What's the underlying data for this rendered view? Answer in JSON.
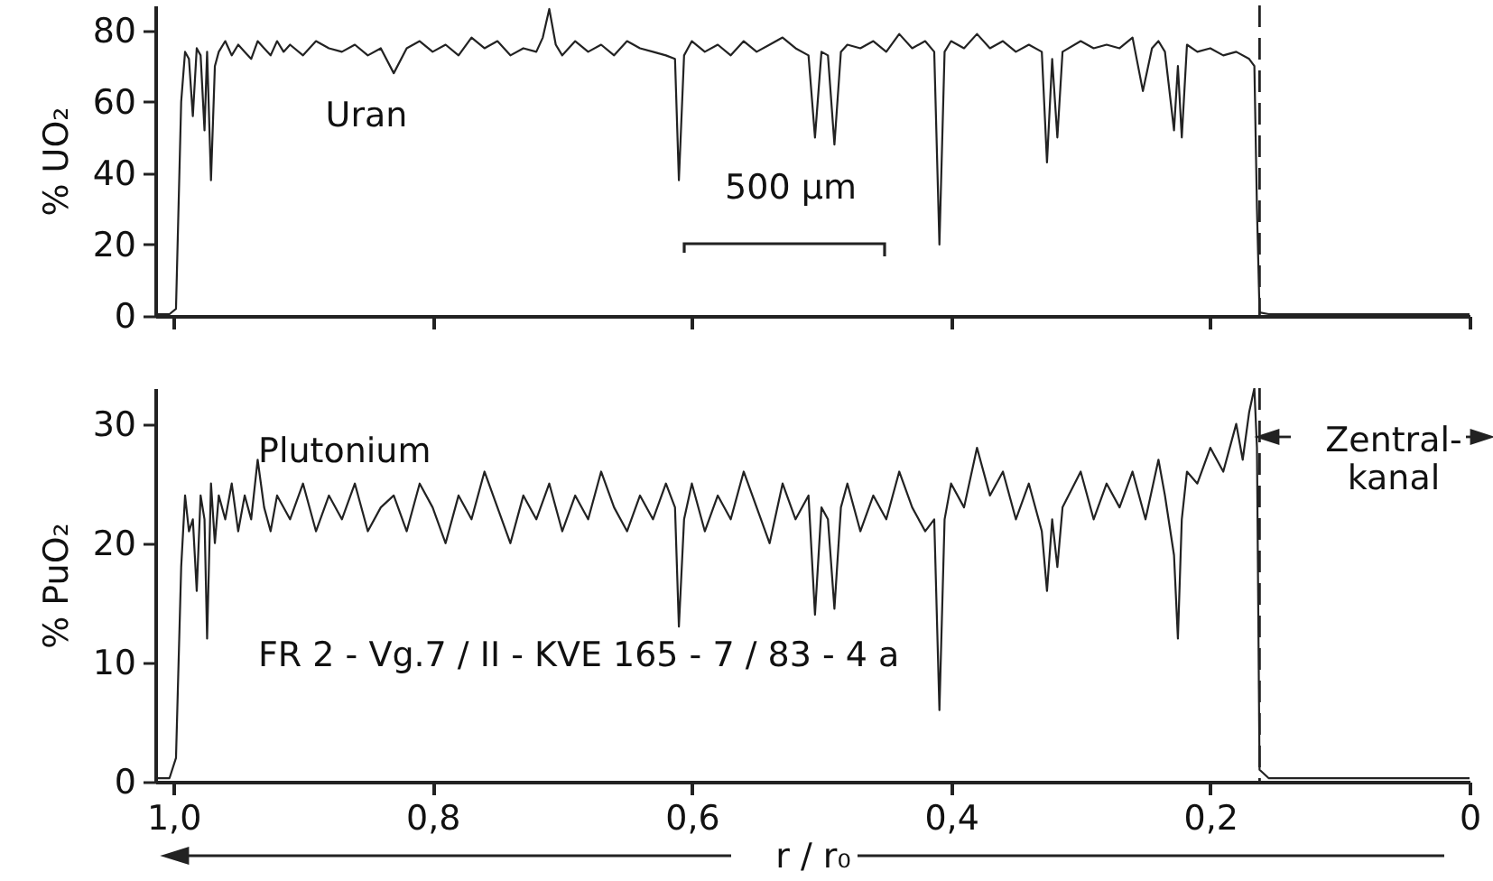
{
  "chart_data": [
    {
      "type": "line",
      "ylabel": "% UO₂",
      "xlim": [
        1.014,
        0
      ],
      "ylim": [
        0,
        87
      ],
      "xticks": [
        {
          "value": 1,
          "label": null
        },
        {
          "value": 0.8,
          "label": null
        },
        {
          "value": 0.6,
          "label": null
        },
        {
          "value": 0.4,
          "label": null
        },
        {
          "value": 0.2,
          "label": null
        },
        {
          "value": 0,
          "label": null
        }
      ],
      "yticks": [
        0,
        20,
        40,
        60,
        80
      ],
      "tick_labels": "y",
      "grid": false,
      "line_style": "solid",
      "marker": "none",
      "annotations": [
        "Uran",
        "500 µm"
      ],
      "ref_lines": [
        {
          "axis": "x",
          "value": 0.162,
          "line_style": "dashed",
          "color": "#222222"
        }
      ],
      "series": [
        {
          "color": "#222222",
          "x": [
            1.014,
            1.003,
            0.998,
            0.994,
            0.991,
            0.988,
            0.985,
            0.982,
            0.979,
            0.976,
            0.974,
            0.971,
            0.968,
            0.965,
            0.96,
            0.955,
            0.95,
            0.945,
            0.94,
            0.935,
            0.93,
            0.925,
            0.92,
            0.915,
            0.91,
            0.9,
            0.89,
            0.88,
            0.87,
            0.86,
            0.85,
            0.84,
            0.83,
            0.82,
            0.81,
            0.8,
            0.79,
            0.78,
            0.77,
            0.76,
            0.75,
            0.74,
            0.73,
            0.72,
            0.715,
            0.71,
            0.705,
            0.7,
            0.69,
            0.68,
            0.67,
            0.66,
            0.65,
            0.64,
            0.63,
            0.62,
            0.613,
            0.61,
            0.606,
            0.6,
            0.59,
            0.58,
            0.57,
            0.56,
            0.55,
            0.54,
            0.53,
            0.52,
            0.51,
            0.505,
            0.5,
            0.495,
            0.49,
            0.485,
            0.48,
            0.47,
            0.46,
            0.45,
            0.44,
            0.43,
            0.42,
            0.413,
            0.409,
            0.405,
            0.4,
            0.39,
            0.38,
            0.37,
            0.36,
            0.35,
            0.34,
            0.33,
            0.326,
            0.322,
            0.318,
            0.314,
            0.3,
            0.29,
            0.28,
            0.27,
            0.26,
            0.252,
            0.245,
            0.24,
            0.235,
            0.228,
            0.225,
            0.222,
            0.218,
            0.21,
            0.2,
            0.19,
            0.18,
            0.17,
            0.166,
            0.164,
            0.162,
            0.155,
            0
          ],
          "values": [
            0.5,
            0.5,
            2,
            60,
            74,
            72,
            56,
            75,
            73,
            52,
            74,
            38,
            70,
            74,
            77,
            73,
            76,
            74,
            72,
            77,
            75,
            73,
            77,
            74,
            76,
            73,
            77,
            75,
            74,
            76,
            73,
            75,
            68,
            75,
            77,
            74,
            76,
            73,
            78,
            75,
            77,
            73,
            75,
            74,
            78,
            86,
            76,
            73,
            77,
            74,
            76,
            73,
            77,
            75,
            74,
            73,
            72,
            38,
            73,
            77,
            74,
            76,
            73,
            77,
            74,
            76,
            78,
            75,
            73,
            50,
            74,
            73,
            48,
            74,
            76,
            75,
            77,
            74,
            79,
            75,
            77,
            74,
            20,
            74,
            77,
            75,
            79,
            75,
            77,
            74,
            76,
            74,
            43,
            72,
            50,
            74,
            77,
            75,
            76,
            75,
            78,
            63,
            75,
            77,
            74,
            52,
            70,
            50,
            76,
            74,
            75,
            73,
            74,
            72,
            70,
            30,
            1,
            0.5,
            0.5
          ]
        }
      ]
    },
    {
      "type": "line",
      "ylabel": "% PuO₂",
      "xlabel": "r / r₀",
      "xlim": [
        1.014,
        0
      ],
      "ylim": [
        0,
        33
      ],
      "xticks": [
        {
          "value": 1,
          "label": "1,0"
        },
        {
          "value": 0.8,
          "label": "0,8"
        },
        {
          "value": 0.6,
          "label": "0,6"
        },
        {
          "value": 0.4,
          "label": "0,4"
        },
        {
          "value": 0.2,
          "label": "0,2"
        },
        0
      ],
      "yticks": [
        0,
        10,
        20,
        30
      ],
      "grid": false,
      "line_style": "solid",
      "marker": "none",
      "annotations": [
        "Plutonium",
        "FR 2 - Vg.7 / II - KVE 165 - 7 / 83 - 4 a",
        "Zentral-\nkanal"
      ],
      "ref_lines": [
        {
          "axis": "x",
          "value": 0.162,
          "line_style": "dashed",
          "color": "#222222"
        }
      ],
      "series": [
        {
          "color": "#222222",
          "x": [
            1.014,
            1.003,
            0.998,
            0.994,
            0.991,
            0.988,
            0.985,
            0.982,
            0.979,
            0.976,
            0.974,
            0.971,
            0.968,
            0.965,
            0.96,
            0.955,
            0.95,
            0.945,
            0.94,
            0.935,
            0.93,
            0.925,
            0.92,
            0.91,
            0.9,
            0.89,
            0.88,
            0.87,
            0.86,
            0.85,
            0.84,
            0.83,
            0.82,
            0.81,
            0.8,
            0.79,
            0.78,
            0.77,
            0.76,
            0.75,
            0.74,
            0.73,
            0.72,
            0.71,
            0.7,
            0.69,
            0.68,
            0.67,
            0.66,
            0.65,
            0.64,
            0.63,
            0.62,
            0.613,
            0.61,
            0.606,
            0.6,
            0.59,
            0.58,
            0.57,
            0.56,
            0.55,
            0.54,
            0.53,
            0.52,
            0.51,
            0.505,
            0.5,
            0.495,
            0.49,
            0.485,
            0.48,
            0.47,
            0.46,
            0.45,
            0.44,
            0.43,
            0.42,
            0.413,
            0.409,
            0.405,
            0.4,
            0.39,
            0.38,
            0.37,
            0.36,
            0.35,
            0.34,
            0.33,
            0.326,
            0.322,
            0.318,
            0.314,
            0.3,
            0.29,
            0.28,
            0.27,
            0.26,
            0.25,
            0.24,
            0.235,
            0.228,
            0.225,
            0.222,
            0.218,
            0.21,
            0.2,
            0.19,
            0.18,
            0.175,
            0.17,
            0.166,
            0.164,
            0.162,
            0.155,
            0
          ],
          "values": [
            0.3,
            0.3,
            2,
            18,
            24,
            21,
            22,
            16,
            24,
            22,
            12,
            25,
            20,
            24,
            22,
            25,
            21,
            24,
            22,
            27,
            23,
            21,
            24,
            22,
            25,
            21,
            24,
            22,
            25,
            21,
            23,
            24,
            21,
            25,
            23,
            20,
            24,
            22,
            26,
            23,
            20,
            24,
            22,
            25,
            21,
            24,
            22,
            26,
            23,
            21,
            24,
            22,
            25,
            23,
            13,
            22,
            25,
            21,
            24,
            22,
            26,
            23,
            20,
            25,
            22,
            24,
            14,
            23,
            22,
            14.5,
            23,
            25,
            21,
            24,
            22,
            26,
            23,
            21,
            22,
            6,
            22,
            25,
            23,
            28,
            24,
            26,
            22,
            25,
            21,
            16,
            22,
            18,
            23,
            26,
            22,
            25,
            23,
            26,
            22,
            27,
            24,
            19,
            12,
            22,
            26,
            25,
            28,
            26,
            30,
            27,
            31,
            33,
            28,
            1,
            0.3,
            0.3
          ]
        }
      ]
    }
  ]
}
